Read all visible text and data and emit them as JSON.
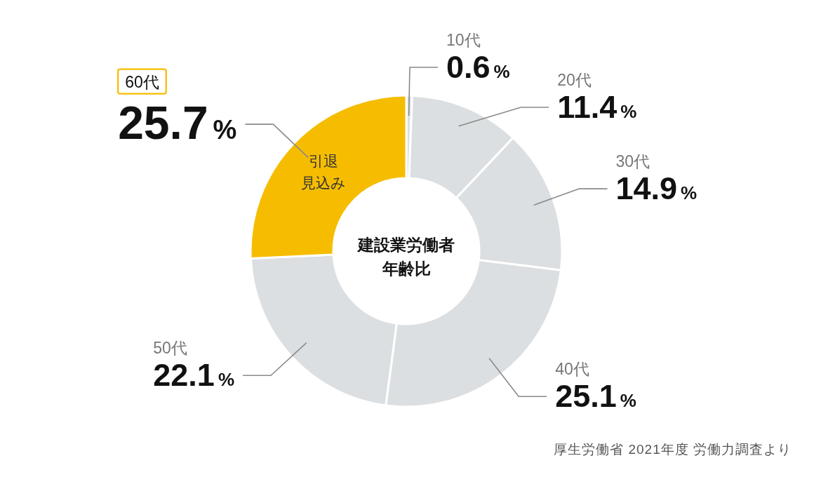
{
  "chart_data": {
    "type": "donut",
    "title": "建設業労働者年齢比",
    "categories": [
      "10代",
      "20代",
      "30代",
      "40代",
      "50代",
      "60代"
    ],
    "values": [
      0.6,
      11.4,
      14.9,
      25.1,
      22.1,
      25.7
    ],
    "colors": [
      "#dcdfe1",
      "#dcdfe1",
      "#dcdfe1",
      "#dcdfe1",
      "#dcdfe1",
      "#f6bd00"
    ],
    "value_labels": [
      "0.6%",
      "11.4%",
      "14.9%",
      "25.1%",
      "22.1%",
      "25.7%"
    ],
    "annotations": [
      {
        "text": "引退見込み",
        "x": "60代"
      },
      "厚生労働省 2021年度 労働力調査より"
    ]
  }
}
